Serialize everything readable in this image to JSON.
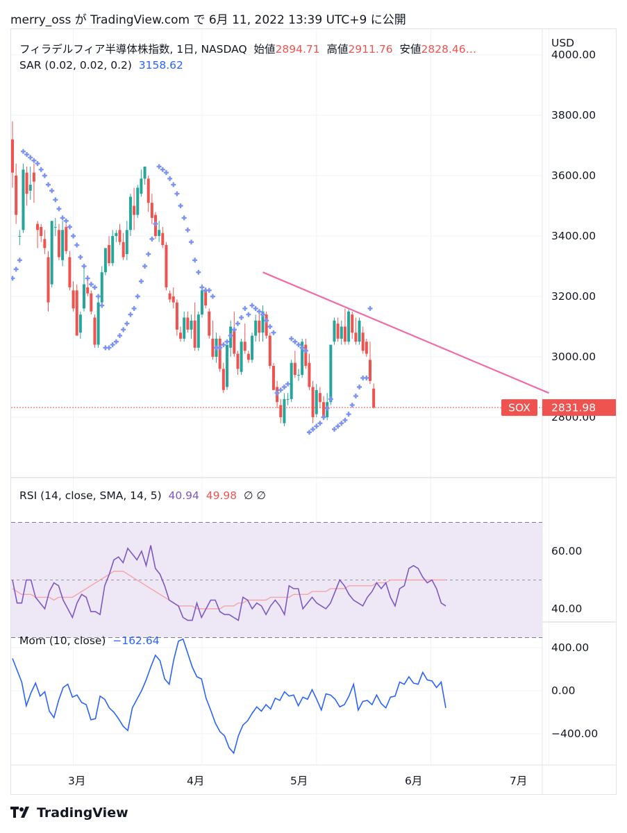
{
  "header": {
    "text": "merry_oss が TradingView.com で 6月 11, 2022 13:39 UTC+9 に公開"
  },
  "legend": {
    "symbol": "フィラデルフィア半導体株指数, 1日, NASDAQ",
    "open_label": "始値",
    "open_value": "2894.71",
    "high_label": "高値",
    "high_value": "2911.76",
    "low_label": "安値",
    "low_value": "2828.46…",
    "sar_label": "SAR (0.02, 0.02, 0.2)",
    "sar_value": "3158.62",
    "rsi_label": "RSI (14, close, SMA, 14, 5)",
    "rsi_value": "40.94",
    "rsi_sma_value": "49.98",
    "rsi_extra": "∅  ∅",
    "mom_label": "Mom (10, close)",
    "mom_value": "−162.64"
  },
  "price_axis": {
    "currency": "USD",
    "ticks": [
      "4000.00",
      "3800.00",
      "3600.00",
      "3400.00",
      "3200.00",
      "3000.00",
      "2800.00"
    ],
    "last_symbol": "SOX",
    "last_value": "2831.98"
  },
  "rsi_axis": {
    "ticks": [
      "60.00",
      "40.00"
    ]
  },
  "mom_axis": {
    "ticks": [
      "400.00",
      "0.00",
      "−400.00"
    ]
  },
  "time_axis": {
    "labels": [
      "3月",
      "4月",
      "5月",
      "6月",
      "7月"
    ]
  },
  "footer": {
    "brand": "TradingView"
  },
  "colors": {
    "up": "#26a69a",
    "down": "#ef5350",
    "sar": "#7b93f7",
    "trendline": "#f06ba8",
    "rsi": "#7e57c2",
    "rsi_sma": "#f4a5a5",
    "rsi_band": "#ede7f6",
    "momentum": "#2962ff"
  },
  "chart_data": [
    {
      "type": "candlestick",
      "title": "フィラデルフィア半導体株指数, 1日, NASDAQ",
      "ylabel": "USD",
      "ylim": [
        2620,
        4040
      ],
      "x_labels": [
        "3月",
        "4月",
        "5月",
        "6月",
        "7月"
      ],
      "candles": [
        {
          "o": 3720,
          "h": 3780,
          "l": 3560,
          "c": 3610
        },
        {
          "o": 3600,
          "h": 3640,
          "l": 3440,
          "c": 3470
        },
        {
          "o": 3400,
          "h": 3420,
          "l": 3370,
          "c": 3400
        },
        {
          "o": 3420,
          "h": 3640,
          "l": 3410,
          "c": 3620
        },
        {
          "o": 3610,
          "h": 3630,
          "l": 3500,
          "c": 3540
        },
        {
          "o": 3550,
          "h": 3630,
          "l": 3520,
          "c": 3570
        },
        {
          "o": 3610,
          "h": 3640,
          "l": 3510,
          "c": 3580
        },
        {
          "o": 3440,
          "h": 3450,
          "l": 3360,
          "c": 3420
        },
        {
          "o": 3430,
          "h": 3440,
          "l": 3380,
          "c": 3400
        },
        {
          "o": 3390,
          "h": 3420,
          "l": 3340,
          "c": 3360
        },
        {
          "o": 3330,
          "h": 3350,
          "l": 3150,
          "c": 3180
        },
        {
          "o": 3240,
          "h": 3450,
          "l": 3230,
          "c": 3450
        },
        {
          "o": 3430,
          "h": 3460,
          "l": 3400,
          "c": 3430
        },
        {
          "o": 3420,
          "h": 3440,
          "l": 3320,
          "c": 3330
        },
        {
          "o": 3320,
          "h": 3450,
          "l": 3300,
          "c": 3420
        },
        {
          "o": 3430,
          "h": 3440,
          "l": 3340,
          "c": 3350
        },
        {
          "o": 3330,
          "h": 3350,
          "l": 3220,
          "c": 3230
        },
        {
          "o": 3220,
          "h": 3250,
          "l": 3150,
          "c": 3160
        },
        {
          "o": 3220,
          "h": 3240,
          "l": 3070,
          "c": 3070
        },
        {
          "o": 3080,
          "h": 3150,
          "l": 3060,
          "c": 3140
        },
        {
          "o": 3160,
          "h": 3300,
          "l": 3150,
          "c": 3240
        },
        {
          "o": 3230,
          "h": 3270,
          "l": 3200,
          "c": 3210
        },
        {
          "o": 3210,
          "h": 3220,
          "l": 3140,
          "c": 3150
        },
        {
          "o": 3130,
          "h": 3140,
          "l": 3030,
          "c": 3040
        },
        {
          "o": 3040,
          "h": 3200,
          "l": 3030,
          "c": 3180
        },
        {
          "o": 3180,
          "h": 3300,
          "l": 3170,
          "c": 3280
        },
        {
          "o": 3280,
          "h": 3360,
          "l": 3270,
          "c": 3360
        },
        {
          "o": 3370,
          "h": 3400,
          "l": 3300,
          "c": 3310
        },
        {
          "o": 3310,
          "h": 3420,
          "l": 3300,
          "c": 3400
        },
        {
          "o": 3400,
          "h": 3420,
          "l": 3380,
          "c": 3410
        },
        {
          "o": 3420,
          "h": 3440,
          "l": 3370,
          "c": 3380
        },
        {
          "o": 3380,
          "h": 3410,
          "l": 3320,
          "c": 3330
        },
        {
          "o": 3340,
          "h": 3450,
          "l": 3320,
          "c": 3420
        },
        {
          "o": 3420,
          "h": 3540,
          "l": 3400,
          "c": 3530
        },
        {
          "o": 3500,
          "h": 3560,
          "l": 3420,
          "c": 3470
        },
        {
          "o": 3470,
          "h": 3570,
          "l": 3460,
          "c": 3560
        },
        {
          "o": 3540,
          "h": 3620,
          "l": 3530,
          "c": 3590
        },
        {
          "o": 3590,
          "h": 3630,
          "l": 3570,
          "c": 3630
        },
        {
          "o": 3590,
          "h": 3600,
          "l": 3480,
          "c": 3510
        },
        {
          "o": 3510,
          "h": 3540,
          "l": 3440,
          "c": 3460
        },
        {
          "o": 3470,
          "h": 3480,
          "l": 3390,
          "c": 3400
        },
        {
          "o": 3400,
          "h": 3450,
          "l": 3380,
          "c": 3420
        },
        {
          "o": 3410,
          "h": 3430,
          "l": 3360,
          "c": 3370
        },
        {
          "o": 3370,
          "h": 3380,
          "l": 3220,
          "c": 3230
        },
        {
          "o": 3210,
          "h": 3220,
          "l": 3180,
          "c": 3190
        },
        {
          "o": 3200,
          "h": 3230,
          "l": 3160,
          "c": 3180
        },
        {
          "o": 3180,
          "h": 3190,
          "l": 3070,
          "c": 3090
        },
        {
          "o": 3080,
          "h": 3100,
          "l": 3050,
          "c": 3060
        },
        {
          "o": 3060,
          "h": 3150,
          "l": 3050,
          "c": 3130
        },
        {
          "o": 3130,
          "h": 3150,
          "l": 3080,
          "c": 3090
        },
        {
          "o": 3090,
          "h": 3140,
          "l": 3060,
          "c": 3120
        },
        {
          "o": 3120,
          "h": 3180,
          "l": 3020,
          "c": 3030
        },
        {
          "o": 3030,
          "h": 3150,
          "l": 3020,
          "c": 3140
        },
        {
          "o": 3140,
          "h": 3240,
          "l": 3130,
          "c": 3220
        },
        {
          "o": 3220,
          "h": 3230,
          "l": 3160,
          "c": 3170
        },
        {
          "o": 3150,
          "h": 3160,
          "l": 3060,
          "c": 3070
        },
        {
          "o": 3060,
          "h": 3120,
          "l": 2990,
          "c": 3000
        },
        {
          "o": 3000,
          "h": 3080,
          "l": 2980,
          "c": 3060
        },
        {
          "o": 3060,
          "h": 3070,
          "l": 2950,
          "c": 2960
        },
        {
          "o": 2960,
          "h": 2980,
          "l": 2880,
          "c": 2890
        },
        {
          "o": 2900,
          "h": 3040,
          "l": 2890,
          "c": 3040
        },
        {
          "o": 3030,
          "h": 3120,
          "l": 3000,
          "c": 3100
        },
        {
          "o": 3090,
          "h": 3150,
          "l": 3000,
          "c": 3010
        },
        {
          "o": 3010,
          "h": 3020,
          "l": 2940,
          "c": 2960
        },
        {
          "o": 2950,
          "h": 3060,
          "l": 2940,
          "c": 3050
        },
        {
          "o": 3050,
          "h": 3110,
          "l": 3010,
          "c": 3020
        },
        {
          "o": 3010,
          "h": 3020,
          "l": 2980,
          "c": 2990
        },
        {
          "o": 2990,
          "h": 3080,
          "l": 2980,
          "c": 3070
        },
        {
          "o": 3070,
          "h": 3140,
          "l": 3050,
          "c": 3120
        },
        {
          "o": 3120,
          "h": 3150,
          "l": 3050,
          "c": 3080
        },
        {
          "o": 3080,
          "h": 3170,
          "l": 3050,
          "c": 3150
        },
        {
          "o": 3140,
          "h": 3150,
          "l": 3060,
          "c": 3070
        },
        {
          "o": 3070,
          "h": 3080,
          "l": 2960,
          "c": 2970
        },
        {
          "o": 2970,
          "h": 2980,
          "l": 2890,
          "c": 2890
        },
        {
          "o": 2900,
          "h": 2920,
          "l": 2830,
          "c": 2850
        },
        {
          "o": 2840,
          "h": 2860,
          "l": 2780,
          "c": 2800
        },
        {
          "o": 2780,
          "h": 2880,
          "l": 2770,
          "c": 2860
        },
        {
          "o": 2860,
          "h": 2880,
          "l": 2840,
          "c": 2860
        },
        {
          "o": 2860,
          "h": 2990,
          "l": 2850,
          "c": 2980
        },
        {
          "o": 2980,
          "h": 3020,
          "l": 2930,
          "c": 2940
        },
        {
          "o": 2940,
          "h": 2960,
          "l": 2920,
          "c": 2940
        },
        {
          "o": 2940,
          "h": 3060,
          "l": 2930,
          "c": 3050
        },
        {
          "o": 3040,
          "h": 3060,
          "l": 2960,
          "c": 2970
        },
        {
          "o": 2980,
          "h": 3010,
          "l": 2890,
          "c": 2900
        },
        {
          "o": 2900,
          "h": 2920,
          "l": 2780,
          "c": 2800
        },
        {
          "o": 2810,
          "h": 2910,
          "l": 2800,
          "c": 2890
        },
        {
          "o": 2880,
          "h": 2900,
          "l": 2830,
          "c": 2850
        },
        {
          "o": 2850,
          "h": 2870,
          "l": 2790,
          "c": 2800
        },
        {
          "o": 2800,
          "h": 2880,
          "l": 2790,
          "c": 2850
        },
        {
          "o": 2850,
          "h": 3040,
          "l": 2840,
          "c": 3040
        },
        {
          "o": 3050,
          "h": 3130,
          "l": 3040,
          "c": 3120
        },
        {
          "o": 3110,
          "h": 3130,
          "l": 3050,
          "c": 3060
        },
        {
          "o": 3060,
          "h": 3120,
          "l": 3040,
          "c": 3100
        },
        {
          "o": 3100,
          "h": 3160,
          "l": 3040,
          "c": 3050
        },
        {
          "o": 3050,
          "h": 3160,
          "l": 3040,
          "c": 3150
        },
        {
          "o": 3140,
          "h": 3150,
          "l": 3060,
          "c": 3080
        },
        {
          "o": 3080,
          "h": 3130,
          "l": 3040,
          "c": 3050
        },
        {
          "o": 3050,
          "h": 3130,
          "l": 3040,
          "c": 3120
        },
        {
          "o": 3080,
          "h": 3100,
          "l": 3010,
          "c": 3020
        },
        {
          "o": 3050,
          "h": 3060,
          "l": 3000,
          "c": 3010
        },
        {
          "o": 2990,
          "h": 3050,
          "l": 2910,
          "c": 2920
        },
        {
          "o": 2894.71,
          "h": 2911.76,
          "l": 2828.46,
          "c": 2831.98
        }
      ],
      "sar": [
        3260,
        3290,
        3320,
        3680,
        3670,
        3660,
        3650,
        3640,
        3620,
        3600,
        3570,
        3550,
        3520,
        3490,
        3460,
        3450,
        3430,
        3400,
        3370,
        3330,
        3300,
        3260,
        3240,
        3230,
        3200,
        3170,
        3030,
        3030,
        3040,
        3050,
        3070,
        3090,
        3110,
        3140,
        3160,
        3200,
        3250,
        3300,
        3340,
        3390,
        3440,
        3630,
        3620,
        3610,
        3590,
        3570,
        3540,
        3500,
        3460,
        3420,
        3380,
        3320,
        3280,
        3230,
        3220,
        3220,
        3200,
        3030,
        3030,
        3040,
        3050,
        3070,
        3090,
        3110,
        3130,
        3160,
        3140,
        3170,
        3160,
        3150,
        3140,
        3120,
        3100,
        3080,
        2880,
        2890,
        2900,
        2910,
        3060,
        3050,
        3040,
        3030,
        3020,
        2750,
        2760,
        2770,
        2780,
        2800,
        2830,
        2860,
        2760,
        2770,
        2780,
        2790,
        2810,
        2840,
        2870,
        2900,
        2930,
        2930,
        3160
      ],
      "trendline": {
        "from": {
          "index": 70,
          "price": 3280
        },
        "to": {
          "index": 150,
          "price": 2880
        }
      },
      "last_price_line": 2831.98
    },
    {
      "type": "line",
      "title": "RSI (14, close, SMA, 14, 5)",
      "ylim": [
        26,
        74
      ],
      "bands": [
        30,
        50,
        70
      ],
      "series": [
        {
          "values": [
            50,
            42,
            42,
            50,
            50,
            44,
            42,
            40,
            46,
            49,
            48,
            43,
            40,
            37,
            42,
            45,
            44,
            39,
            39,
            38,
            48,
            52,
            57,
            58,
            56,
            61,
            59,
            57,
            60,
            55,
            62,
            54,
            52,
            48,
            43,
            42,
            41,
            37,
            36,
            36,
            42,
            37,
            40,
            43,
            43,
            39,
            38,
            38,
            37,
            36,
            44,
            43,
            40,
            42,
            41,
            38,
            41,
            43,
            41,
            38,
            48,
            47,
            47,
            40,
            42,
            44,
            42,
            41,
            40,
            42,
            46,
            50,
            48,
            45,
            43,
            42,
            41,
            44,
            46,
            49,
            47,
            49,
            44,
            41,
            47,
            48,
            54,
            55,
            54,
            51,
            49,
            50,
            47,
            42,
            41
          ]
        },
        {
          "values": [
            47,
            46,
            45,
            45,
            45,
            44,
            44,
            44,
            44,
            43,
            44,
            44,
            44,
            44,
            45,
            46,
            47,
            48,
            49,
            50,
            51,
            52,
            53,
            53,
            53,
            52,
            51,
            50,
            49,
            48,
            47,
            46,
            45,
            44,
            43,
            42,
            41,
            41,
            41,
            41,
            40,
            40,
            40,
            40,
            40,
            40,
            41,
            41,
            41,
            42,
            42,
            43,
            43,
            43,
            43,
            43,
            44,
            44,
            44,
            44,
            44,
            45,
            45,
            45,
            45,
            46,
            46,
            46,
            46,
            47,
            47,
            47,
            47,
            48,
            48,
            48,
            48,
            48,
            48,
            49,
            49,
            49,
            50,
            50,
            50,
            50,
            50,
            50,
            50,
            50,
            50,
            50,
            50,
            50,
            50
          ]
        }
      ]
    },
    {
      "type": "line",
      "title": "Mom (10, close)",
      "ylim": [
        -650,
        530
      ],
      "series": [
        {
          "values": [
            300,
            190,
            80,
            -140,
            -20,
            70,
            -50,
            -10,
            -190,
            -250,
            -90,
            30,
            60,
            -60,
            -40,
            -110,
            -130,
            -270,
            -260,
            -50,
            -80,
            -160,
            -200,
            -260,
            -330,
            -370,
            -160,
            -80,
            0,
            100,
            220,
            330,
            280,
            110,
            60,
            290,
            460,
            480,
            350,
            220,
            130,
            110,
            -70,
            -180,
            -300,
            -380,
            -420,
            -530,
            -580,
            -420,
            -320,
            -280,
            -210,
            -150,
            -190,
            -130,
            -170,
            -70,
            -90,
            -10,
            -50,
            -40,
            -140,
            -60,
            -80,
            10,
            -80,
            -180,
            -30,
            -40,
            -80,
            -150,
            -130,
            -50,
            60,
            -180,
            -100,
            -90,
            -130,
            -40,
            -120,
            -160,
            -60,
            -50,
            80,
            60,
            130,
            70,
            60,
            170,
            100,
            90,
            30,
            80,
            -160
          ]
        }
      ]
    }
  ]
}
